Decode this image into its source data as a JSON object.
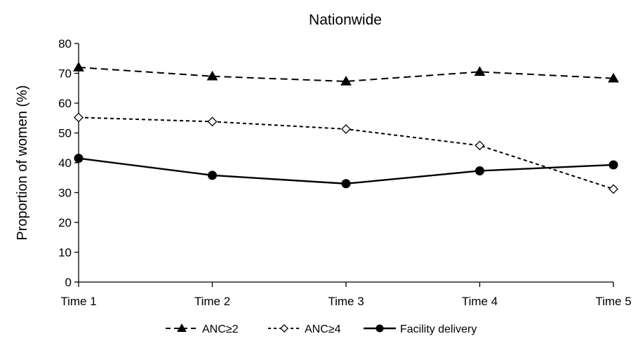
{
  "chart_data": {
    "type": "line",
    "title": "Nationwide",
    "xlabel": "",
    "ylabel": "Proportion of women (%)",
    "categories": [
      "Time 1",
      "Time 2",
      "Time 3",
      "Time 4",
      "Time 5"
    ],
    "ylim": [
      0,
      80
    ],
    "yticks": [
      0,
      10,
      20,
      30,
      40,
      50,
      60,
      70,
      80
    ],
    "grid": false,
    "legend_position": "bottom",
    "series": [
      {
        "name": "ANC≥2",
        "values": [
          72,
          69,
          67.3,
          70.5,
          68.3
        ],
        "line_style": "dashed",
        "marker": "filled-triangle",
        "color": "#000000"
      },
      {
        "name": "ANC≥4",
        "values": [
          55.2,
          53.8,
          51.3,
          45.8,
          31.2
        ],
        "line_style": "short-dashed",
        "marker": "open-diamond",
        "color": "#000000"
      },
      {
        "name": "Facility delivery",
        "values": [
          41.5,
          35.8,
          33,
          37.3,
          39.3
        ],
        "line_style": "solid",
        "marker": "filled-circle",
        "color": "#000000"
      }
    ]
  }
}
